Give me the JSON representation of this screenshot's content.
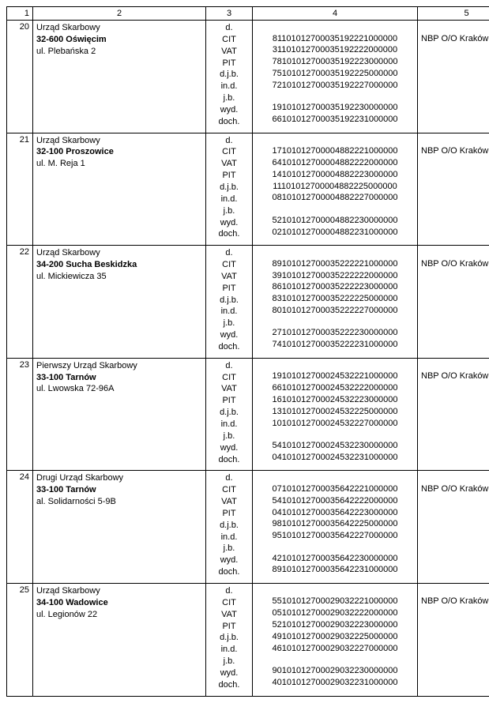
{
  "headers": {
    "c1": "1",
    "c2": "2",
    "c3": "3",
    "c4": "4",
    "c5": "5"
  },
  "type_labels": [
    "d.",
    "CIT",
    "VAT",
    "PIT",
    "d.j.b.",
    "in.d.",
    "j.b.",
    "wyd.",
    "doch."
  ],
  "bank": "NBP O/O Kraków",
  "rows": [
    {
      "num": "20",
      "name_lines": [
        "Urząd Skarbowy",
        "32-600 Oświęcim",
        "ul. Plebańska 2"
      ],
      "bold_index": 1,
      "accounts": {
        "CIT": "81101012700035192221000000",
        "VAT": "31101012700035192222000000",
        "PIT": "78101012700035192223000000",
        "d.j.b.": "75101012700035192225000000",
        "in.d.": "72101012700035192227000000",
        "wyd.": "19101012700035192230000000",
        "doch.": "66101012700035192231000000"
      }
    },
    {
      "num": "21",
      "name_lines": [
        "Urząd Skarbowy",
        "32-100 Proszowice",
        "ul. M. Reja 1"
      ],
      "bold_index": 1,
      "accounts": {
        "CIT": "17101012700004882221000000",
        "VAT": "64101012700004882222000000",
        "PIT": "14101012700004882223000000",
        "d.j.b.": "11101012700004882225000000",
        "in.d.": "08101012700004882227000000",
        "wyd.": "52101012700004882230000000",
        "doch.": "02101012700004882231000000"
      }
    },
    {
      "num": "22",
      "name_lines": [
        "Urząd Skarbowy",
        "34-200 Sucha Beskidzka",
        "ul. Mickiewicza 35"
      ],
      "bold_index": 1,
      "accounts": {
        "CIT": "89101012700035222221000000",
        "VAT": "39101012700035222222000000",
        "PIT": "86101012700035222223000000",
        "d.j.b.": "83101012700035222225000000",
        "in.d.": "80101012700035222227000000",
        "wyd.": "27101012700035222230000000",
        "doch.": "74101012700035222231000000"
      }
    },
    {
      "num": "23",
      "name_lines": [
        "Pierwszy Urząd Skarbowy",
        "33-100 Tarnów",
        "ul. Lwowska 72-96A"
      ],
      "bold_index": 1,
      "accounts": {
        "CIT": "19101012700024532221000000",
        "VAT": "66101012700024532222000000",
        "PIT": "16101012700024532223000000",
        "d.j.b.": "13101012700024532225000000",
        "in.d.": "10101012700024532227000000",
        "wyd.": "54101012700024532230000000",
        "doch.": "04101012700024532231000000"
      }
    },
    {
      "num": "24",
      "name_lines": [
        "Drugi Urząd Skarbowy",
        "33-100 Tarnów",
        "al. Solidarności 5-9B"
      ],
      "bold_index": 1,
      "accounts": {
        "CIT": "07101012700035642221000000",
        "VAT": "54101012700035642222000000",
        "PIT": "04101012700035642223000000",
        "d.j.b.": "98101012700035642225000000",
        "in.d.": "95101012700035642227000000",
        "wyd.": "42101012700035642230000000",
        "doch.": "89101012700035642231000000"
      }
    },
    {
      "num": "25",
      "name_lines": [
        "Urząd Skarbowy",
        "34-100 Wadowice",
        "ul. Legionów 22"
      ],
      "bold_index": 1,
      "accounts": {
        "CIT": "55101012700029032221000000",
        "VAT": "05101012700029032222000000",
        "PIT": "52101012700029032223000000",
        "d.j.b.": "49101012700029032225000000",
        "in.d.": "46101012700029032227000000",
        "wyd.": "90101012700029032230000000",
        "doch.": "40101012700029032231000000"
      }
    }
  ]
}
